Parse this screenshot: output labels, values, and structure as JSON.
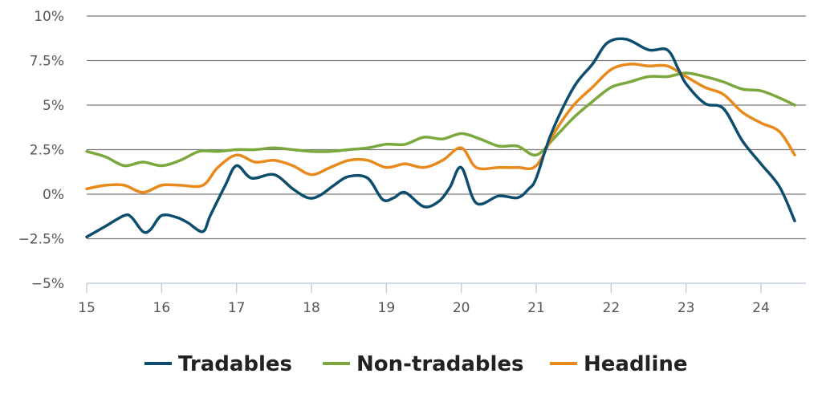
{
  "chart_data": {
    "type": "line",
    "title": "",
    "xlabel": "",
    "ylabel": "",
    "xlim": [
      15,
      24.6
    ],
    "ylim": [
      -5,
      10
    ],
    "y_ticks": [
      10,
      7.5,
      5,
      2.5,
      0,
      -2.5,
      -5
    ],
    "y_tick_labels": [
      "10%",
      "7.5%",
      "5%",
      "2.5%",
      "0%",
      "−2.5%",
      "−5%"
    ],
    "x_ticks": [
      15,
      16,
      17,
      18,
      19,
      20,
      21,
      22,
      23,
      24
    ],
    "x_tick_labels": [
      "15",
      "16",
      "17",
      "18",
      "19",
      "20",
      "21",
      "22",
      "23",
      "24"
    ],
    "grid": "horizontal",
    "legend_position": "bottom",
    "series": [
      {
        "name": "Tradables",
        "color": "#0d4d6e",
        "points": [
          [
            15.0,
            -2.4
          ],
          [
            15.25,
            -1.8
          ],
          [
            15.5,
            -1.2
          ],
          [
            15.6,
            -1.3
          ],
          [
            15.75,
            -2.1
          ],
          [
            15.85,
            -2.0
          ],
          [
            16.0,
            -1.2
          ],
          [
            16.2,
            -1.3
          ],
          [
            16.35,
            -1.6
          ],
          [
            16.55,
            -2.1
          ],
          [
            16.65,
            -1.2
          ],
          [
            16.85,
            0.5
          ],
          [
            17.0,
            1.6
          ],
          [
            17.2,
            0.9
          ],
          [
            17.5,
            1.1
          ],
          [
            17.75,
            0.3
          ],
          [
            17.95,
            -0.2
          ],
          [
            18.1,
            -0.1
          ],
          [
            18.3,
            0.5
          ],
          [
            18.5,
            1.0
          ],
          [
            18.75,
            0.9
          ],
          [
            18.95,
            -0.3
          ],
          [
            19.1,
            -0.2
          ],
          [
            19.25,
            0.1
          ],
          [
            19.5,
            -0.7
          ],
          [
            19.7,
            -0.4
          ],
          [
            19.85,
            0.4
          ],
          [
            20.0,
            1.5
          ],
          [
            20.2,
            -0.5
          ],
          [
            20.5,
            -0.1
          ],
          [
            20.75,
            -0.2
          ],
          [
            20.9,
            0.3
          ],
          [
            21.0,
            0.9
          ],
          [
            21.2,
            3.4
          ],
          [
            21.5,
            6.0
          ],
          [
            21.75,
            7.3
          ],
          [
            21.95,
            8.5
          ],
          [
            22.2,
            8.7
          ],
          [
            22.5,
            8.1
          ],
          [
            22.75,
            8.1
          ],
          [
            22.9,
            7.0
          ],
          [
            23.0,
            6.2
          ],
          [
            23.25,
            5.1
          ],
          [
            23.5,
            4.8
          ],
          [
            23.75,
            3.0
          ],
          [
            24.0,
            1.7
          ],
          [
            24.25,
            0.4
          ],
          [
            24.45,
            -1.5
          ]
        ]
      },
      {
        "name": "Non-tradables",
        "color": "#7aa83c",
        "points": [
          [
            15.0,
            2.4
          ],
          [
            15.25,
            2.1
          ],
          [
            15.5,
            1.6
          ],
          [
            15.75,
            1.8
          ],
          [
            16.0,
            1.6
          ],
          [
            16.25,
            1.9
          ],
          [
            16.5,
            2.4
          ],
          [
            16.75,
            2.4
          ],
          [
            17.0,
            2.5
          ],
          [
            17.25,
            2.5
          ],
          [
            17.5,
            2.6
          ],
          [
            17.75,
            2.5
          ],
          [
            18.0,
            2.4
          ],
          [
            18.25,
            2.4
          ],
          [
            18.5,
            2.5
          ],
          [
            18.75,
            2.6
          ],
          [
            19.0,
            2.8
          ],
          [
            19.25,
            2.8
          ],
          [
            19.5,
            3.2
          ],
          [
            19.75,
            3.1
          ],
          [
            20.0,
            3.4
          ],
          [
            20.25,
            3.1
          ],
          [
            20.5,
            2.7
          ],
          [
            20.75,
            2.7
          ],
          [
            21.0,
            2.2
          ],
          [
            21.25,
            3.2
          ],
          [
            21.5,
            4.3
          ],
          [
            21.75,
            5.2
          ],
          [
            22.0,
            6.0
          ],
          [
            22.25,
            6.3
          ],
          [
            22.5,
            6.6
          ],
          [
            22.75,
            6.6
          ],
          [
            23.0,
            6.8
          ],
          [
            23.25,
            6.6
          ],
          [
            23.5,
            6.3
          ],
          [
            23.75,
            5.9
          ],
          [
            24.0,
            5.8
          ],
          [
            24.25,
            5.4
          ],
          [
            24.45,
            5.0
          ]
        ]
      },
      {
        "name": "Headline",
        "color": "#e8891c",
        "points": [
          [
            15.0,
            0.3
          ],
          [
            15.25,
            0.5
          ],
          [
            15.5,
            0.5
          ],
          [
            15.75,
            0.1
          ],
          [
            16.0,
            0.5
          ],
          [
            16.25,
            0.5
          ],
          [
            16.55,
            0.5
          ],
          [
            16.75,
            1.5
          ],
          [
            17.0,
            2.2
          ],
          [
            17.25,
            1.8
          ],
          [
            17.5,
            1.9
          ],
          [
            17.75,
            1.6
          ],
          [
            18.0,
            1.1
          ],
          [
            18.25,
            1.5
          ],
          [
            18.5,
            1.9
          ],
          [
            18.75,
            1.9
          ],
          [
            19.0,
            1.5
          ],
          [
            19.25,
            1.7
          ],
          [
            19.5,
            1.5
          ],
          [
            19.75,
            1.9
          ],
          [
            20.0,
            2.6
          ],
          [
            20.2,
            1.5
          ],
          [
            20.5,
            1.5
          ],
          [
            20.75,
            1.5
          ],
          [
            21.0,
            1.6
          ],
          [
            21.25,
            3.5
          ],
          [
            21.5,
            5.0
          ],
          [
            21.75,
            6.0
          ],
          [
            22.0,
            7.0
          ],
          [
            22.25,
            7.3
          ],
          [
            22.5,
            7.2
          ],
          [
            22.75,
            7.2
          ],
          [
            23.0,
            6.6
          ],
          [
            23.25,
            6.0
          ],
          [
            23.5,
            5.6
          ],
          [
            23.75,
            4.6
          ],
          [
            24.0,
            4.0
          ],
          [
            24.25,
            3.5
          ],
          [
            24.45,
            2.2
          ]
        ]
      }
    ]
  }
}
